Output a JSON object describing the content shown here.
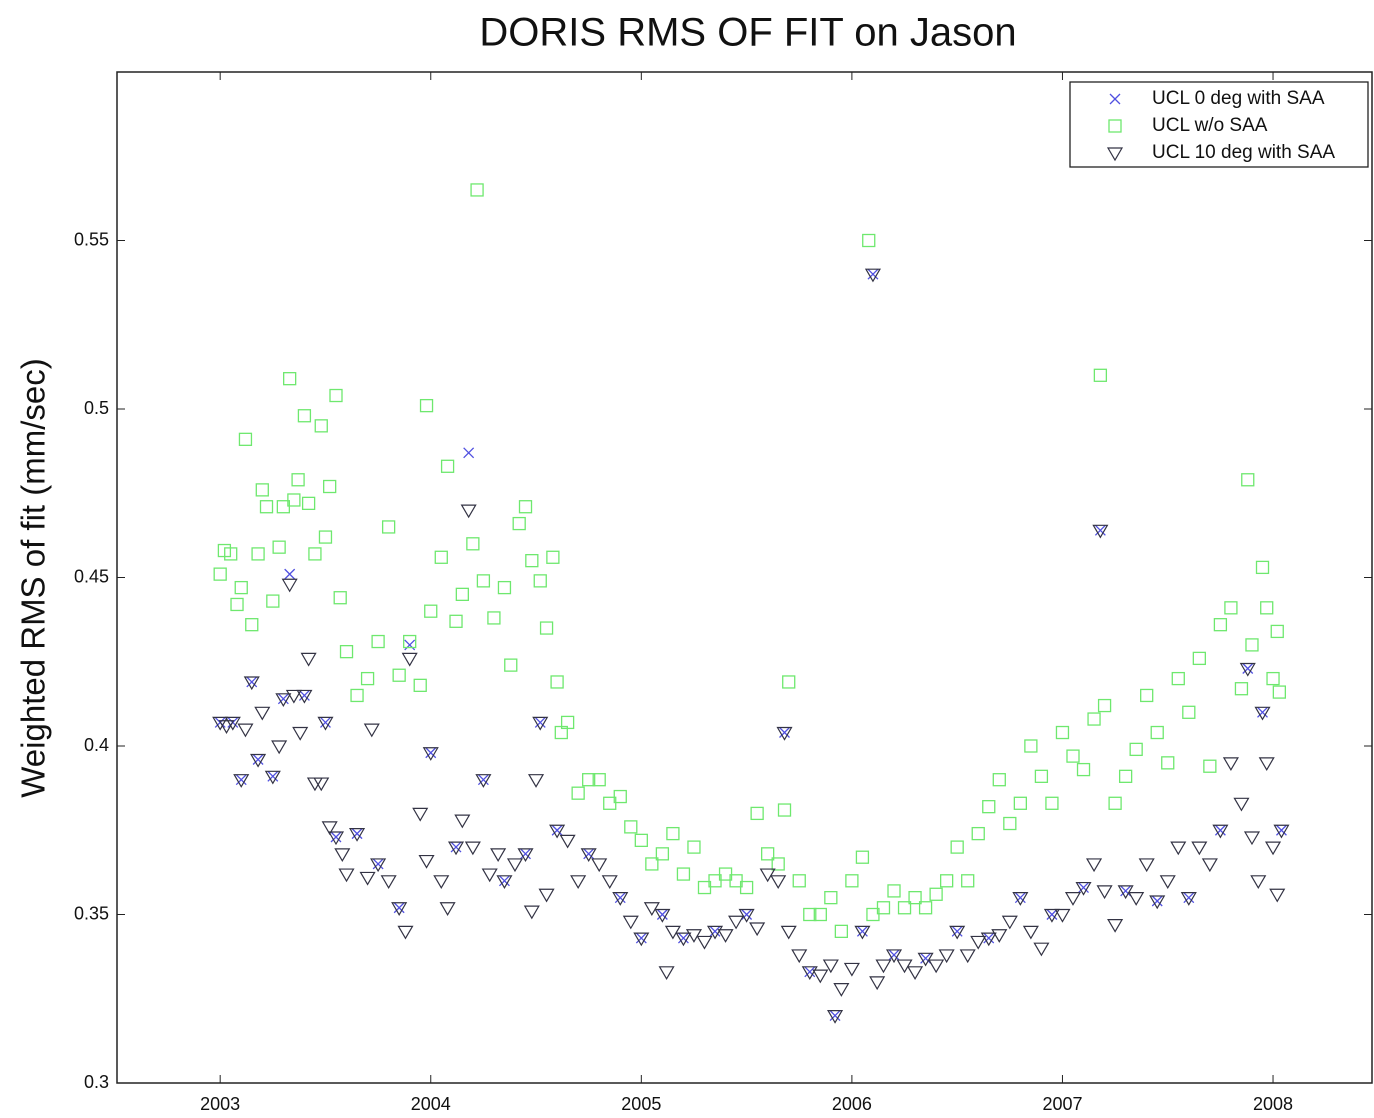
{
  "chart_data": {
    "type": "scatter",
    "title": "DORIS RMS OF FIT on Jason",
    "y_label": "Weighted RMS of fit (mm/sec)",
    "xlim": [
      2002.51,
      2008.47
    ],
    "ylim": [
      0.3,
      0.6
    ],
    "xticks": [
      2003,
      2004,
      2005,
      2006,
      2007,
      2008
    ],
    "yticks": [
      0.3,
      0.35,
      0.4,
      0.45,
      0.5,
      0.55
    ],
    "grid": false,
    "legend": "upper right",
    "series": [
      {
        "name": "UCL 0 deg with SAA",
        "color": "#5050e0",
        "marker": "x",
        "x": [
          2003.0,
          2003.06,
          2003.1,
          2003.15,
          2003.18,
          2003.25,
          2003.3,
          2003.33,
          2003.4,
          2003.5,
          2003.55,
          2003.65,
          2003.75,
          2003.85,
          2003.9,
          2004.0,
          2004.12,
          2004.18,
          2004.25,
          2004.35,
          2004.45,
          2004.52,
          2004.6,
          2004.75,
          2004.9,
          2005.0,
          2005.1,
          2005.2,
          2005.35,
          2005.5,
          2005.68,
          2005.8,
          2005.92,
          2006.05,
          2006.1,
          2006.2,
          2006.35,
          2006.5,
          2006.65,
          2006.8,
          2006.95,
          2007.1,
          2007.18,
          2007.3,
          2007.45,
          2007.6,
          2007.75,
          2007.88,
          2007.95,
          2008.04
        ],
        "values": [
          0.407,
          0.407,
          0.39,
          0.419,
          0.396,
          0.391,
          0.414,
          0.451,
          0.415,
          0.407,
          0.373,
          0.374,
          0.365,
          0.352,
          0.43,
          0.398,
          0.37,
          0.487,
          0.39,
          0.36,
          0.368,
          0.407,
          0.375,
          0.368,
          0.355,
          0.343,
          0.35,
          0.343,
          0.345,
          0.35,
          0.404,
          0.333,
          0.32,
          0.345,
          0.54,
          0.338,
          0.337,
          0.345,
          0.343,
          0.355,
          0.35,
          0.358,
          0.464,
          0.357,
          0.354,
          0.355,
          0.375,
          0.423,
          0.41,
          0.375
        ]
      },
      {
        "name": "UCL w/o SAA",
        "color": "#6ee86e",
        "marker": "square",
        "x": [
          2003.0,
          2003.02,
          2003.05,
          2003.08,
          2003.1,
          2003.12,
          2003.15,
          2003.18,
          2003.2,
          2003.22,
          2003.25,
          2003.28,
          2003.3,
          2003.33,
          2003.35,
          2003.37,
          2003.4,
          2003.42,
          2003.45,
          2003.48,
          2003.5,
          2003.52,
          2003.55,
          2003.57,
          2003.6,
          2003.65,
          2003.7,
          2003.75,
          2003.8,
          2003.85,
          2003.9,
          2003.95,
          2003.98,
          2004.0,
          2004.05,
          2004.08,
          2004.12,
          2004.15,
          2004.2,
          2004.22,
          2004.25,
          2004.3,
          2004.35,
          2004.38,
          2004.42,
          2004.45,
          2004.48,
          2004.52,
          2004.55,
          2004.58,
          2004.6,
          2004.62,
          2004.65,
          2004.7,
          2004.75,
          2004.8,
          2004.85,
          2004.9,
          2004.95,
          2005.0,
          2005.05,
          2005.1,
          2005.15,
          2005.2,
          2005.25,
          2005.3,
          2005.35,
          2005.4,
          2005.45,
          2005.5,
          2005.55,
          2005.6,
          2005.65,
          2005.68,
          2005.7,
          2005.75,
          2005.8,
          2005.85,
          2005.9,
          2005.95,
          2006.0,
          2006.05,
          2006.08,
          2006.1,
          2006.15,
          2006.2,
          2006.25,
          2006.3,
          2006.35,
          2006.4,
          2006.45,
          2006.5,
          2006.55,
          2006.6,
          2006.65,
          2006.7,
          2006.75,
          2006.8,
          2006.85,
          2006.9,
          2006.95,
          2007.0,
          2007.05,
          2007.1,
          2007.15,
          2007.18,
          2007.2,
          2007.25,
          2007.3,
          2007.35,
          2007.4,
          2007.45,
          2007.5,
          2007.55,
          2007.6,
          2007.65,
          2007.7,
          2007.75,
          2007.8,
          2007.85,
          2007.88,
          2007.9,
          2007.95,
          2007.97,
          2008.0,
          2008.02,
          2008.03
        ],
        "values": [
          0.451,
          0.458,
          0.457,
          0.442,
          0.447,
          0.491,
          0.436,
          0.457,
          0.476,
          0.471,
          0.443,
          0.459,
          0.471,
          0.509,
          0.473,
          0.479,
          0.498,
          0.472,
          0.457,
          0.495,
          0.462,
          0.477,
          0.504,
          0.444,
          0.428,
          0.415,
          0.42,
          0.431,
          0.465,
          0.421,
          0.431,
          0.418,
          0.501,
          0.44,
          0.456,
          0.483,
          0.437,
          0.445,
          0.46,
          0.565,
          0.449,
          0.438,
          0.447,
          0.424,
          0.466,
          0.471,
          0.455,
          0.449,
          0.435,
          0.456,
          0.419,
          0.404,
          0.407,
          0.386,
          0.39,
          0.39,
          0.383,
          0.385,
          0.376,
          0.372,
          0.365,
          0.368,
          0.374,
          0.362,
          0.37,
          0.358,
          0.36,
          0.362,
          0.36,
          0.358,
          0.38,
          0.368,
          0.365,
          0.381,
          0.419,
          0.36,
          0.35,
          0.35,
          0.355,
          0.345,
          0.36,
          0.367,
          0.55,
          0.35,
          0.352,
          0.357,
          0.352,
          0.355,
          0.352,
          0.356,
          0.36,
          0.37,
          0.36,
          0.374,
          0.382,
          0.39,
          0.377,
          0.383,
          0.4,
          0.391,
          0.383,
          0.404,
          0.397,
          0.393,
          0.408,
          0.51,
          0.412,
          0.383,
          0.391,
          0.399,
          0.415,
          0.404,
          0.395,
          0.42,
          0.41,
          0.426,
          0.394,
          0.436,
          0.441,
          0.417,
          0.479,
          0.43,
          0.453,
          0.441,
          0.42,
          0.434,
          0.416
        ]
      },
      {
        "name": "UCL 10 deg with SAA",
        "color": "#333344",
        "marker": "triangle-down",
        "x": [
          2003.0,
          2003.03,
          2003.06,
          2003.1,
          2003.12,
          2003.15,
          2003.18,
          2003.2,
          2003.25,
          2003.28,
          2003.3,
          2003.33,
          2003.35,
          2003.38,
          2003.4,
          2003.42,
          2003.45,
          2003.48,
          2003.5,
          2003.52,
          2003.55,
          2003.58,
          2003.6,
          2003.65,
          2003.7,
          2003.72,
          2003.75,
          2003.8,
          2003.85,
          2003.88,
          2003.9,
          2003.95,
          2003.98,
          2004.0,
          2004.05,
          2004.08,
          2004.12,
          2004.15,
          2004.18,
          2004.2,
          2004.25,
          2004.28,
          2004.32,
          2004.35,
          2004.4,
          2004.45,
          2004.48,
          2004.5,
          2004.52,
          2004.55,
          2004.6,
          2004.65,
          2004.7,
          2004.75,
          2004.8,
          2004.85,
          2004.9,
          2004.95,
          2005.0,
          2005.05,
          2005.1,
          2005.12,
          2005.15,
          2005.2,
          2005.25,
          2005.3,
          2005.35,
          2005.4,
          2005.45,
          2005.5,
          2005.55,
          2005.6,
          2005.65,
          2005.68,
          2005.7,
          2005.75,
          2005.8,
          2005.85,
          2005.9,
          2005.92,
          2005.95,
          2006.0,
          2006.05,
          2006.1,
          2006.12,
          2006.15,
          2006.2,
          2006.25,
          2006.3,
          2006.35,
          2006.4,
          2006.45,
          2006.5,
          2006.55,
          2006.6,
          2006.65,
          2006.7,
          2006.75,
          2006.8,
          2006.85,
          2006.9,
          2006.95,
          2007.0,
          2007.05,
          2007.1,
          2007.15,
          2007.18,
          2007.2,
          2007.25,
          2007.3,
          2007.35,
          2007.4,
          2007.45,
          2007.5,
          2007.55,
          2007.6,
          2007.65,
          2007.7,
          2007.75,
          2007.8,
          2007.85,
          2007.88,
          2007.9,
          2007.93,
          2007.95,
          2007.97,
          2008.0,
          2008.02,
          2008.04
        ],
        "values": [
          0.407,
          0.406,
          0.407,
          0.39,
          0.405,
          0.419,
          0.396,
          0.41,
          0.391,
          0.4,
          0.414,
          0.448,
          0.415,
          0.404,
          0.415,
          0.426,
          0.389,
          0.389,
          0.407,
          0.376,
          0.373,
          0.368,
          0.362,
          0.374,
          0.361,
          0.405,
          0.365,
          0.36,
          0.352,
          0.345,
          0.426,
          0.38,
          0.366,
          0.398,
          0.36,
          0.352,
          0.37,
          0.378,
          0.47,
          0.37,
          0.39,
          0.362,
          0.368,
          0.36,
          0.365,
          0.368,
          0.351,
          0.39,
          0.407,
          0.356,
          0.375,
          0.372,
          0.36,
          0.368,
          0.365,
          0.36,
          0.355,
          0.348,
          0.343,
          0.352,
          0.35,
          0.333,
          0.345,
          0.343,
          0.344,
          0.342,
          0.345,
          0.344,
          0.348,
          0.35,
          0.346,
          0.362,
          0.36,
          0.404,
          0.345,
          0.338,
          0.333,
          0.332,
          0.335,
          0.32,
          0.328,
          0.334,
          0.345,
          0.54,
          0.33,
          0.335,
          0.338,
          0.335,
          0.333,
          0.337,
          0.335,
          0.338,
          0.345,
          0.338,
          0.342,
          0.343,
          0.344,
          0.348,
          0.355,
          0.345,
          0.34,
          0.35,
          0.35,
          0.355,
          0.358,
          0.365,
          0.464,
          0.357,
          0.347,
          0.357,
          0.355,
          0.365,
          0.354,
          0.36,
          0.37,
          0.355,
          0.37,
          0.365,
          0.375,
          0.395,
          0.383,
          0.423,
          0.373,
          0.36,
          0.41,
          0.395,
          0.37,
          0.356,
          0.375
        ]
      }
    ]
  }
}
